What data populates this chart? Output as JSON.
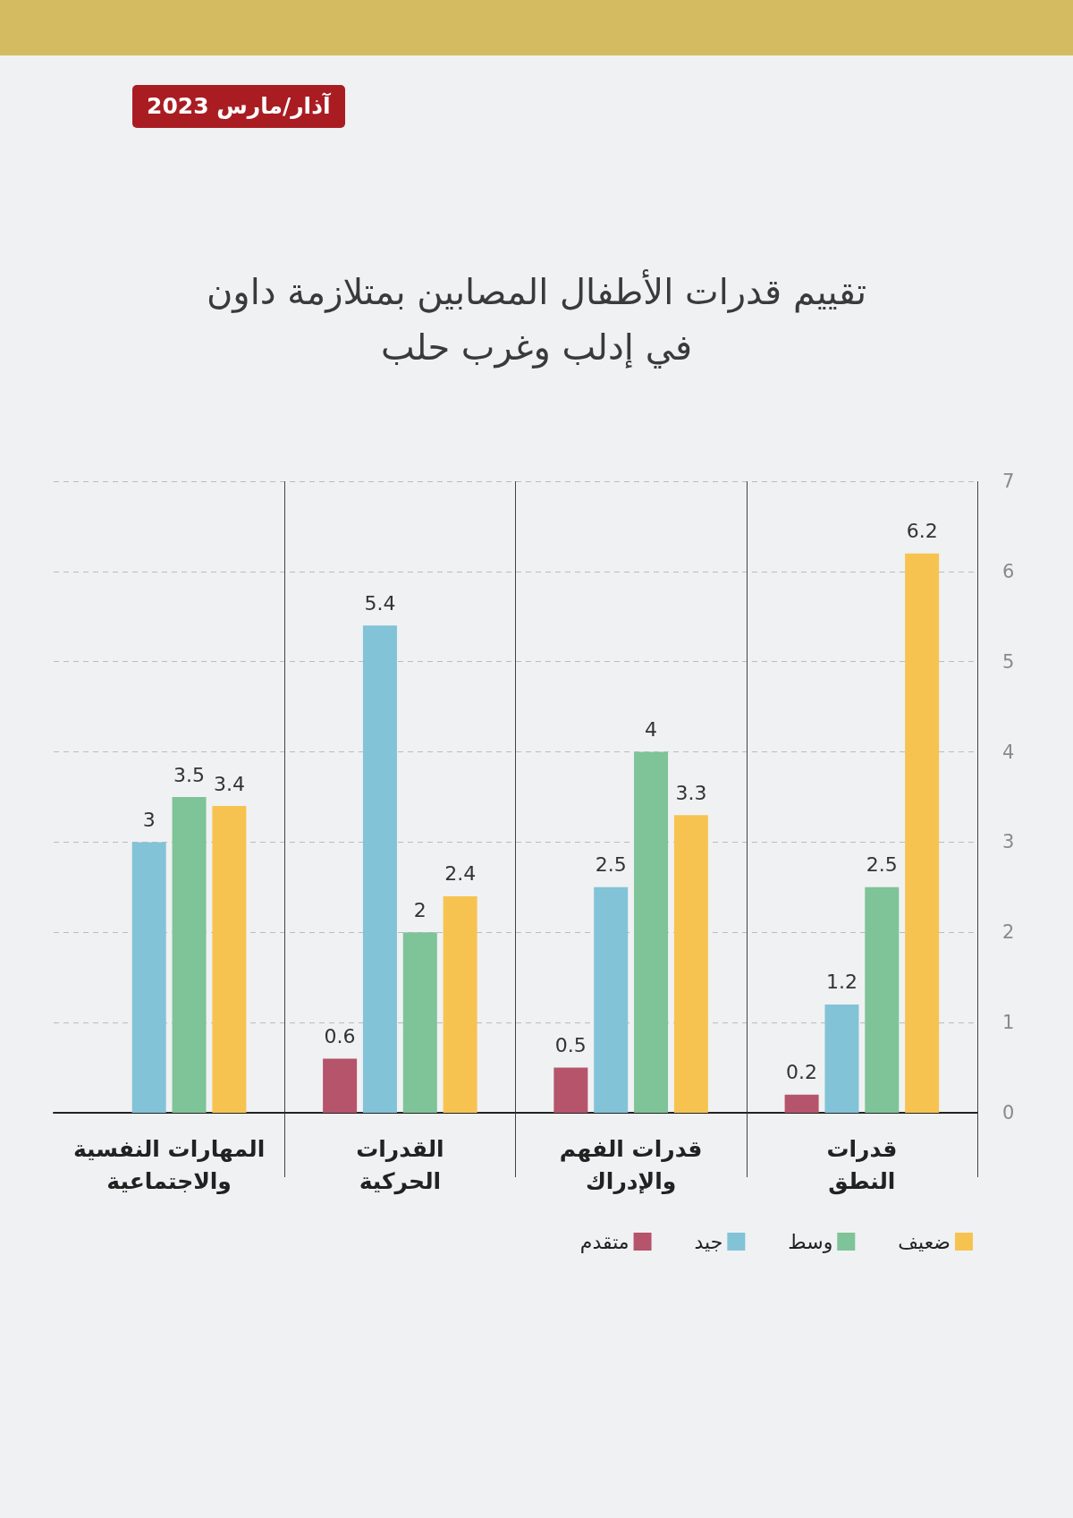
{
  "chart_data": {
    "type": "bar",
    "title": "تقييم قدرات الأطفال المصابين بمتلازمة داون في إدلب وغرب حلب",
    "annotations": [
      "آذار/مارس 2023"
    ],
    "categories": [
      "المهارات النفسية والاجتماعية",
      "القدرات الحركية",
      "قدرات الفهم والإدراك",
      "قدرات النطق"
    ],
    "series": [
      {
        "name": "متقدم",
        "color": "#b5546a",
        "values": [
          null,
          0.6,
          0.5,
          0.2
        ]
      },
      {
        "name": "جيد",
        "color": "#82c3d8",
        "values": [
          3,
          5.4,
          2.5,
          1.2
        ]
      },
      {
        "name": "وسط",
        "color": "#7fc398",
        "values": [
          3.5,
          2,
          4,
          2.5
        ]
      },
      {
        "name": "ضعيف",
        "color": "#f7c350",
        "values": [
          3.4,
          2.4,
          3.3,
          6.2
        ]
      }
    ],
    "ylim": [
      0,
      7
    ],
    "yticks": [
      0,
      1,
      2,
      3,
      4,
      5,
      6,
      7
    ],
    "grid": true,
    "legend": "bottom right",
    "data_labels": true
  }
}
